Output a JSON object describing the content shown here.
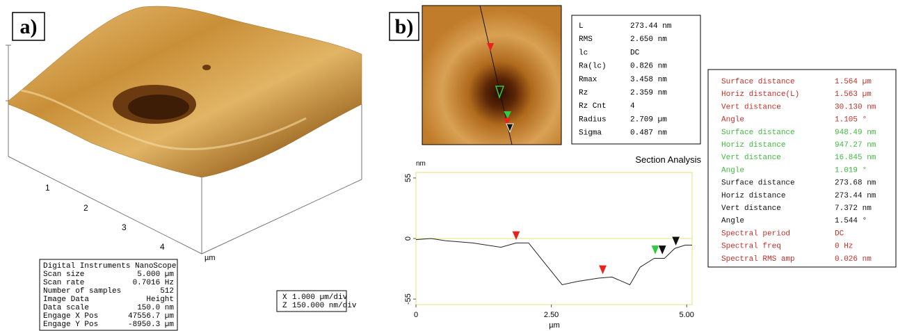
{
  "panel_a": {
    "label": "a)",
    "axis_ticks": [
      "1",
      "2",
      "3",
      "4"
    ],
    "axis_unit": "µm",
    "info_box": {
      "title": "Digital Instruments NanoScope",
      "rows": [
        [
          "Scan size",
          "5.000 µm"
        ],
        [
          "Scan rate",
          "0.7016 Hz"
        ],
        [
          "Number of samples",
          "512"
        ],
        [
          "Image Data",
          "Height"
        ],
        [
          "Data scale",
          "150.0 nm"
        ],
        [
          "Engage X Pos",
          "47556.7 µm"
        ],
        [
          "Engage Y Pos",
          "-8950.3 µm"
        ]
      ]
    },
    "scale_box": [
      [
        "X",
        "1.000 µm/div"
      ],
      [
        "Z",
        "150.000 nm/div"
      ]
    ]
  },
  "panel_b": {
    "label": "b)",
    "parameters": [
      [
        "L",
        "273.44 nm"
      ],
      [
        "RMS",
        "2.650 nm"
      ],
      [
        "lc",
        "DC"
      ],
      [
        "Ra(lc)",
        "0.826 nm"
      ],
      [
        "Rmax",
        "3.458 nm"
      ],
      [
        "Rz",
        "2.359 nm"
      ],
      [
        "Rz Cnt",
        "4"
      ],
      [
        "Radius",
        "2.709 µm"
      ],
      [
        "Sigma",
        "0.487 nm"
      ]
    ],
    "measurements": [
      {
        "name": "Surface distance",
        "value": "1.564 µm",
        "color": "#c0302a"
      },
      {
        "name": "Horiz distance(L)",
        "value": "1.563 µm",
        "color": "#c0302a"
      },
      {
        "name": "Vert distance",
        "value": "30.130 nm",
        "color": "#c0302a"
      },
      {
        "name": "Angle",
        "value": "1.105 °",
        "color": "#c0302a"
      },
      {
        "name": "Surface distance",
        "value": "948.49 nm",
        "color": "#3dbb3d"
      },
      {
        "name": "Horiz distance",
        "value": "947.27 nm",
        "color": "#3dbb3d"
      },
      {
        "name": "Vert distance",
        "value": "16.845 nm",
        "color": "#3dbb3d"
      },
      {
        "name": "Angle",
        "value": "1.019 °",
        "color": "#3dbb3d"
      },
      {
        "name": "Surface distance",
        "value": "273.68 nm",
        "color": "#111111"
      },
      {
        "name": "Horiz distance",
        "value": "273.44 nm",
        "color": "#111111"
      },
      {
        "name": "Vert distance",
        "value": "7.372 nm",
        "color": "#111111"
      },
      {
        "name": "Angle",
        "value": "1.544 °",
        "color": "#111111"
      },
      {
        "name": "Spectral period",
        "value": "DC",
        "color": "#c0302a"
      },
      {
        "name": "Spectral freq",
        "value": "0 Hz",
        "color": "#c0302a"
      },
      {
        "name": "Spectral RMS amp",
        "value": "0.026 nm",
        "color": "#c0302a"
      }
    ]
  },
  "chart_data": {
    "type": "line",
    "title": "Section Analysis",
    "y_label": "nm",
    "x_label": "µm",
    "x": [
      0,
      0.28,
      0.54,
      1.05,
      1.57,
      1.85,
      2.08,
      2.34,
      2.7,
      2.98,
      3.37,
      3.62,
      3.95,
      4.14,
      4.4,
      4.59,
      4.78,
      4.97,
      5.1
    ],
    "series": [
      {
        "color": "#222222",
        "values": [
          -1,
          0,
          -2,
          -4,
          -8,
          -4,
          -4,
          -20,
          -42,
          -39,
          -36,
          -35,
          -42,
          -26,
          -18,
          -18,
          -9,
          -6,
          -6
        ]
      }
    ],
    "cursors": [
      {
        "x": 1.85,
        "y": -2,
        "color": "#e8231e"
      },
      {
        "x": 3.45,
        "y": -33,
        "color": "#e8231e"
      },
      {
        "x": 4.42,
        "y": -15,
        "color": "#2ecc40"
      },
      {
        "x": 4.55,
        "y": -15,
        "color": "#111111"
      },
      {
        "x": 4.8,
        "y": -7,
        "color": "#111111"
      }
    ],
    "xlim": [
      0,
      5.1
    ],
    "ylim": [
      -60,
      60
    ],
    "xticks": [
      0,
      {
        "value": 2.5,
        "label": "2.50"
      },
      {
        "value": 5,
        "label": "5.00"
      }
    ],
    "yticks": [
      -55,
      0,
      55
    ],
    "axis_color": "#e6e07a"
  }
}
